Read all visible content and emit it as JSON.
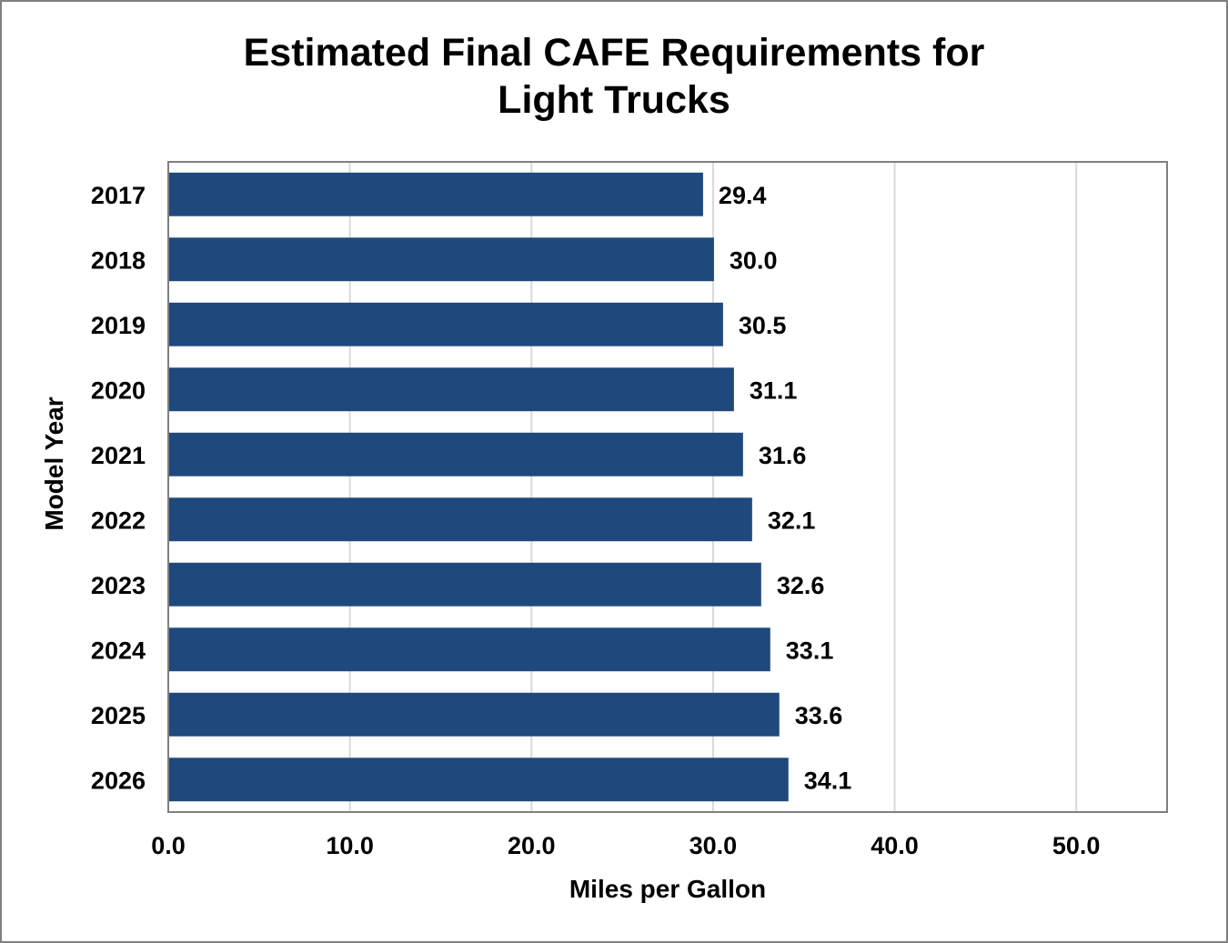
{
  "chart_data": {
    "type": "bar",
    "orientation": "horizontal",
    "title_lines": [
      "Estimated Final CAFE Requirements for",
      "Light Trucks"
    ],
    "title": "Estimated Final CAFE Requirements for Light Trucks",
    "xlabel": "Miles per Gallon",
    "ylabel": "Model Year",
    "categories": [
      "2017",
      "2018",
      "2019",
      "2020",
      "2021",
      "2022",
      "2023",
      "2024",
      "2025",
      "2026"
    ],
    "values": [
      29.4,
      30.0,
      30.5,
      31.1,
      31.6,
      32.1,
      32.6,
      33.1,
      33.6,
      34.1
    ],
    "value_labels": [
      "29.4",
      "30.0",
      "30.5",
      "31.1",
      "31.6",
      "32.1",
      "32.6",
      "33.1",
      "33.6",
      "34.1"
    ],
    "xlim": [
      0,
      55
    ],
    "x_ticks": [
      0,
      10,
      20,
      30,
      40,
      50
    ],
    "x_tick_labels": [
      "0.0",
      "10.0",
      "20.0",
      "30.0",
      "40.0",
      "50.0"
    ],
    "grid": "vertical",
    "legend": "none",
    "bar_color": "#1f497d",
    "grid_color": "#d9d9d9",
    "frame_color": "#7f7f7f"
  }
}
